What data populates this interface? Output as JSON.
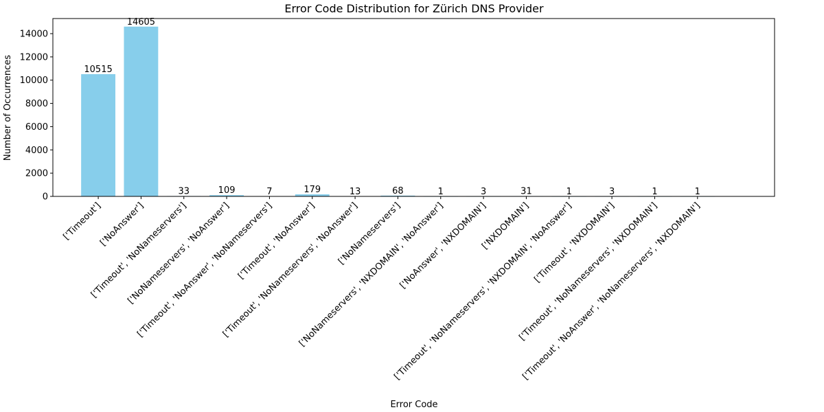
{
  "chart_data": {
    "type": "bar",
    "title": "Error Code Distribution for Zürich DNS Provider",
    "xlabel": "Error Code",
    "ylabel": "Number of Occurrences",
    "ylim": [
      0,
      15300
    ],
    "yticks": [
      0,
      2000,
      4000,
      6000,
      8000,
      10000,
      12000,
      14000
    ],
    "grid": false,
    "bar_color": "#87CEEB",
    "categories": [
      "['Timeout']",
      "['NoAnswer']",
      "['Timeout', 'NoNameservers']",
      "['NoNameservers', 'NoAnswer']",
      "['Timeout', 'NoAnswer', 'NoNameservers']",
      "['Timeout', 'NoAnswer']",
      "['Timeout', 'NoNameservers', 'NoAnswer']",
      "['NoNameservers']",
      "['NoNameservers', 'NXDOMAIN', 'NoAnswer']",
      "['NoAnswer', 'NXDOMAIN']",
      "['NXDOMAIN']",
      "['Timeout', 'NoNameservers', 'NXDOMAIN', 'NoAnswer']",
      "['Timeout', 'NXDOMAIN']",
      "['Timeout', 'NoNameservers', 'NXDOMAIN']",
      "['Timeout', 'NoAnswer', 'NoNameservers', 'NXDOMAIN']"
    ],
    "values": [
      10515,
      14605,
      33,
      109,
      7,
      179,
      13,
      68,
      1,
      3,
      31,
      1,
      3,
      1,
      1
    ]
  }
}
